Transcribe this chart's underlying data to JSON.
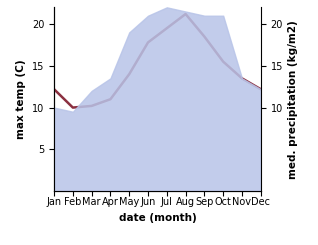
{
  "months": [
    "Jan",
    "Feb",
    "Mar",
    "Apr",
    "May",
    "Jun",
    "Jul",
    "Aug",
    "Sep",
    "Oct",
    "Nov",
    "Dec"
  ],
  "month_indices": [
    1,
    2,
    3,
    4,
    5,
    6,
    7,
    8,
    9,
    10,
    11,
    12
  ],
  "temp_max": [
    12.2,
    10.0,
    10.2,
    11.0,
    14.0,
    17.8,
    19.5,
    21.2,
    18.5,
    15.5,
    13.5,
    12.2
  ],
  "precipitation": [
    10.0,
    9.5,
    12.0,
    13.5,
    19.0,
    21.0,
    22.0,
    21.5,
    21.0,
    21.0,
    13.5,
    12.2
  ],
  "temp_color": "#8B3040",
  "precip_fill_color": "#B8C4E8",
  "precip_fill_alpha": 0.85,
  "ylabel_left": "max temp (C)",
  "ylabel_right": "med. precipitation (kg/m2)",
  "xlabel": "date (month)",
  "ylim_left": [
    0,
    22
  ],
  "ylim_right": [
    0,
    22
  ],
  "yticks_left": [
    5,
    10,
    15,
    20
  ],
  "yticks_right": [
    10,
    15,
    20
  ],
  "bg_color": "#ffffff",
  "label_fontsize": 7.5,
  "tick_fontsize": 7,
  "line_width": 1.8
}
